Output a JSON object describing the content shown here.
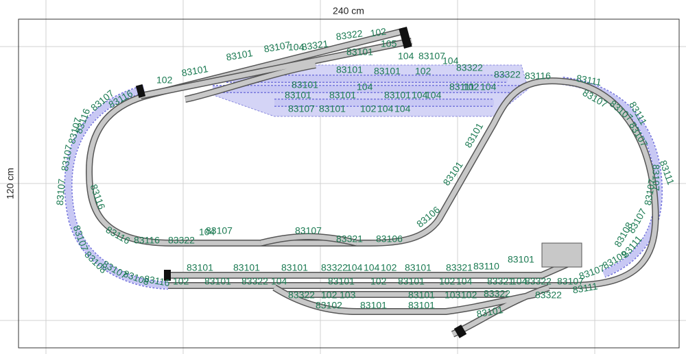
{
  "dimensions": {
    "width": "240 cm",
    "height": "120 cm"
  },
  "labels": [
    "102",
    "83101",
    "83101",
    "83107",
    "104",
    "83321",
    "83322",
    "102",
    "105",
    "83101",
    "104",
    "83107",
    "104",
    "83322",
    "83322",
    "83116",
    "83111",
    "83107",
    "83107",
    "83111",
    "83107",
    "83111",
    "83107",
    "83107",
    "83107",
    "83111",
    "83108",
    "83109",
    "83107",
    "83111",
    "83101",
    "83110",
    "83321",
    "83101",
    "83322",
    "104",
    "104",
    "102",
    "83101",
    "83101",
    "83101",
    "102",
    "83101",
    "83322",
    "104",
    "83101",
    "102",
    "83101",
    "102",
    "104",
    "83321",
    "104",
    "83322",
    "83107",
    "83322",
    "102",
    "103",
    "83101",
    "103",
    "102",
    "83322",
    "83322",
    "83101",
    "83102",
    "83101",
    "83101",
    "83106",
    "83321",
    "83107",
    "83322",
    "104",
    "83107",
    "83116",
    "83116",
    "83116",
    "83116",
    "83107",
    "83107",
    "83107",
    "83107",
    "83108",
    "83107",
    "83108",
    "83116",
    "83106",
    "83101",
    "83101",
    "83101",
    "83101",
    "104",
    "83101",
    "104",
    "104",
    "83107",
    "83101",
    "102",
    "104",
    "104",
    "83101",
    "102",
    "83101",
    "83101",
    "83116",
    "83107",
    "83111",
    "102",
    "104"
  ]
}
